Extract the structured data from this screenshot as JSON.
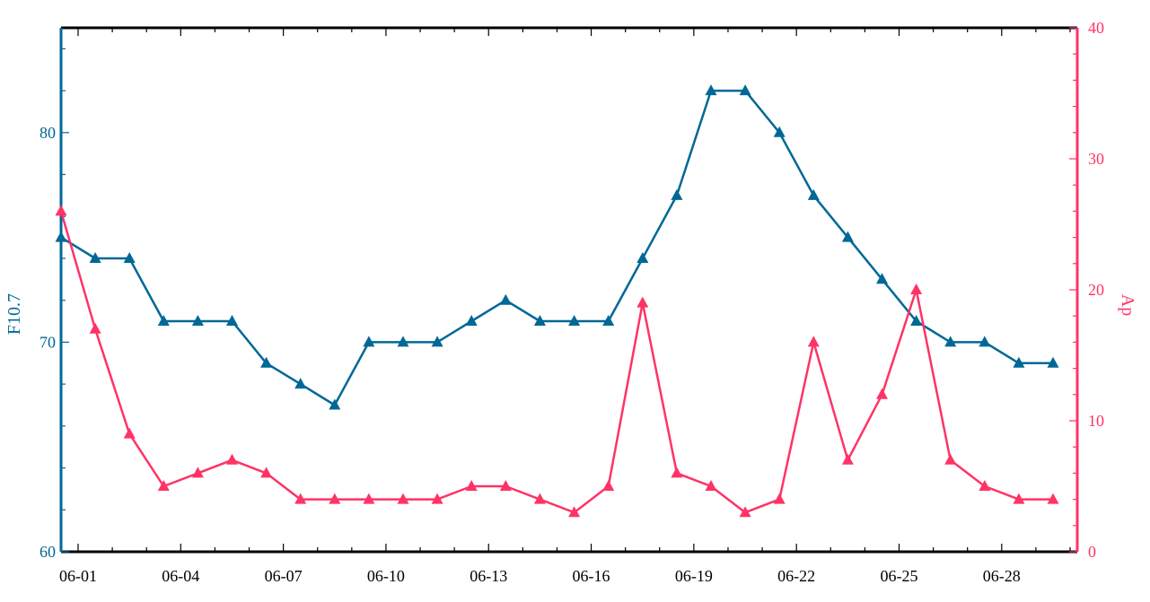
{
  "chart_data": {
    "type": "line",
    "x": [
      "06-01",
      "06-02",
      "06-03",
      "06-04",
      "06-05",
      "06-06",
      "06-07",
      "06-08",
      "06-09",
      "06-10",
      "06-11",
      "06-12",
      "06-13",
      "06-14",
      "06-15",
      "06-16",
      "06-17",
      "06-18",
      "06-19",
      "06-20",
      "06-21",
      "06-22",
      "06-23",
      "06-24",
      "06-25",
      "06-26",
      "06-27",
      "06-28",
      "06-29",
      "06-30"
    ],
    "xticks": [
      "06-01",
      "06-04",
      "06-07",
      "06-10",
      "06-13",
      "06-16",
      "06-19",
      "06-22",
      "06-25",
      "06-28"
    ],
    "series": [
      {
        "axis": "left",
        "color": "#006896",
        "marker": "triangle",
        "values": [
          75,
          74,
          74,
          71,
          71,
          71,
          69,
          68,
          67,
          70,
          70,
          70,
          71,
          72,
          71,
          71,
          71,
          74,
          77,
          82,
          82,
          80,
          77,
          75,
          73,
          71,
          70,
          70,
          69,
          69
        ]
      },
      {
        "axis": "right",
        "color": "#ff3366",
        "marker": "triangle",
        "values": [
          26,
          17,
          9,
          5,
          6,
          7,
          6,
          4,
          4,
          4,
          4,
          4,
          5,
          5,
          4,
          3,
          5,
          19,
          6,
          5,
          3,
          4,
          16,
          7,
          12,
          20,
          7,
          5,
          4,
          4
        ]
      }
    ],
    "ylabel_left": "F10.7",
    "ylabel_right": "Ap",
    "ylim_left": [
      60,
      85
    ],
    "ylim_right": [
      0,
      40
    ],
    "yticks_left": [
      60,
      70,
      80
    ],
    "yticks_right": [
      0,
      10,
      20,
      30,
      40
    ],
    "left_axis_color": "#006896",
    "right_axis_color": "#ff3366",
    "grid": false,
    "legend": "none"
  }
}
